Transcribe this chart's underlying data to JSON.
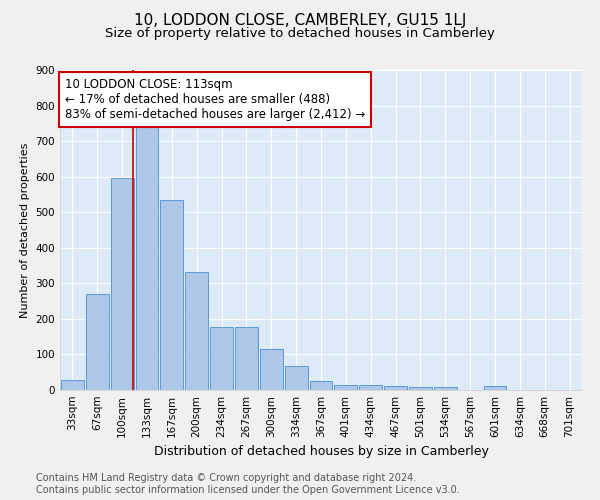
{
  "title": "10, LODDON CLOSE, CAMBERLEY, GU15 1LJ",
  "subtitle": "Size of property relative to detached houses in Camberley",
  "xlabel": "Distribution of detached houses by size in Camberley",
  "ylabel": "Number of detached properties",
  "bar_labels": [
    "33sqm",
    "67sqm",
    "100sqm",
    "133sqm",
    "167sqm",
    "200sqm",
    "234sqm",
    "267sqm",
    "300sqm",
    "334sqm",
    "367sqm",
    "401sqm",
    "434sqm",
    "467sqm",
    "501sqm",
    "534sqm",
    "567sqm",
    "601sqm",
    "634sqm",
    "668sqm",
    "701sqm"
  ],
  "bar_values": [
    27,
    270,
    595,
    740,
    535,
    333,
    178,
    178,
    115,
    68,
    25,
    15,
    13,
    10,
    9,
    9,
    0,
    10,
    0,
    0,
    0
  ],
  "bar_color": "#aec6e8",
  "bar_edge_color": "#5b9bd5",
  "background_color": "#ddeaf8",
  "grid_color": "#ffffff",
  "redline_x": 2.42,
  "annotation_text": "10 LODDON CLOSE: 113sqm\n← 17% of detached houses are smaller (488)\n83% of semi-detached houses are larger (2,412) →",
  "annotation_box_color": "#ffffff",
  "annotation_box_edge": "#cc0000",
  "redline_color": "#cc0000",
  "ylim": [
    0,
    900
  ],
  "yticks": [
    0,
    100,
    200,
    300,
    400,
    500,
    600,
    700,
    800,
    900
  ],
  "footer_text": "Contains HM Land Registry data © Crown copyright and database right 2024.\nContains public sector information licensed under the Open Government Licence v3.0.",
  "title_fontsize": 11,
  "subtitle_fontsize": 9.5,
  "xlabel_fontsize": 9,
  "ylabel_fontsize": 8,
  "tick_fontsize": 7.5,
  "annotation_fontsize": 8.5,
  "footer_fontsize": 7
}
